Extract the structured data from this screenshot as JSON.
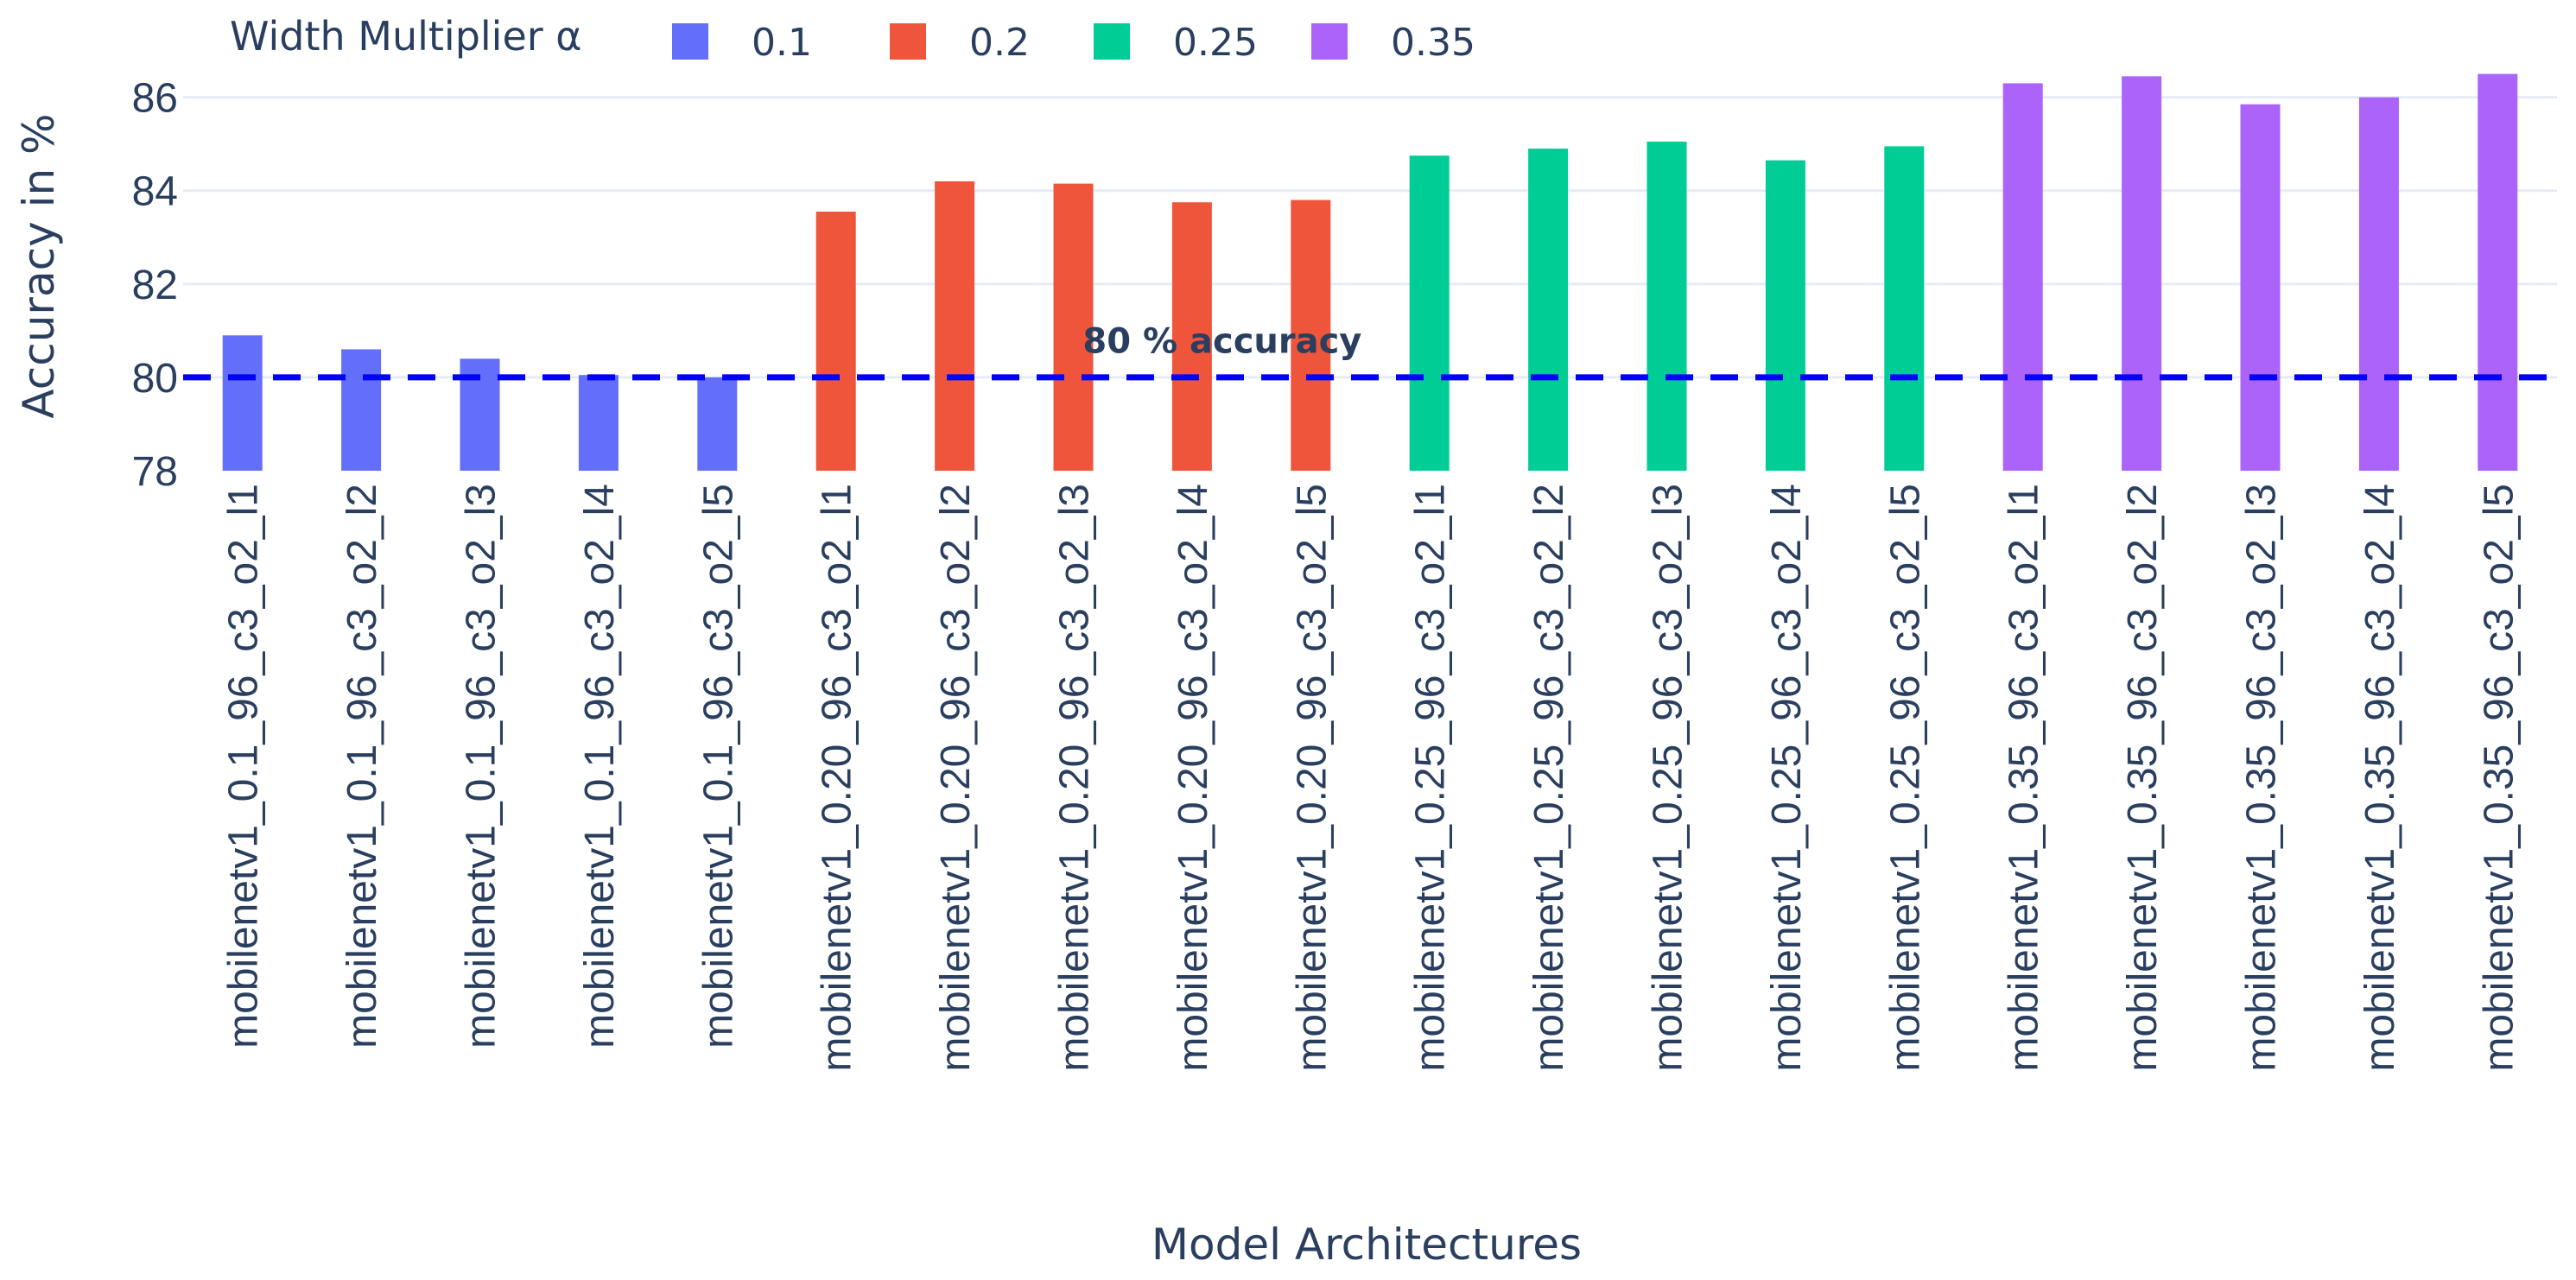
{
  "chart_data": {
    "type": "bar",
    "title": "",
    "xlabel": "Model Architectures",
    "ylabel": "Accuracy in %",
    "ylim": [
      78,
      86.9
    ],
    "yticks": [
      "78",
      "80",
      "82",
      "84",
      "86"
    ],
    "grid": true,
    "legend": {
      "title": "Width Multiplier α",
      "placement": "top-left, horizontal"
    },
    "categories": [
      "mobilenetv1_0.1_96_c3_o2_l1",
      "mobilenetv1_0.1_96_c3_o2_l2",
      "mobilenetv1_0.1_96_c3_o2_l3",
      "mobilenetv1_0.1_96_c3_o2_l4",
      "mobilenetv1_0.1_96_c3_o2_l5",
      "mobilenetv1_0.20_96_c3_o2_l1",
      "mobilenetv1_0.20_96_c3_o2_l2",
      "mobilenetv1_0.20_96_c3_o2_l3",
      "mobilenetv1_0.20_96_c3_o2_l4",
      "mobilenetv1_0.20_96_c3_o2_l5",
      "mobilenetv1_0.25_96_c3_o2_l1",
      "mobilenetv1_0.25_96_c3_o2_l2",
      "mobilenetv1_0.25_96_c3_o2_l3",
      "mobilenetv1_0.25_96_c3_o2_l4",
      "mobilenetv1_0.25_96_c3_o2_l5",
      "mobilenetv1_0.35_96_c3_o2_l1",
      "mobilenetv1_0.35_96_c3_o2_l2",
      "mobilenetv1_0.35_96_c3_o2_l3",
      "mobilenetv1_0.35_96_c3_o2_l4",
      "mobilenetv1_0.35_96_c3_o2_l5"
    ],
    "series": [
      {
        "name": "0.1",
        "color": "#636efa",
        "values": [
          80.9,
          80.6,
          80.4,
          80.05,
          80.0,
          null,
          null,
          null,
          null,
          null,
          null,
          null,
          null,
          null,
          null,
          null,
          null,
          null,
          null,
          null
        ]
      },
      {
        "name": "0.2",
        "color": "#ef553b",
        "values": [
          null,
          null,
          null,
          null,
          null,
          83.55,
          84.2,
          84.15,
          83.75,
          83.8,
          null,
          null,
          null,
          null,
          null,
          null,
          null,
          null,
          null,
          null
        ]
      },
      {
        "name": "0.25",
        "color": "#00cc96",
        "values": [
          null,
          null,
          null,
          null,
          null,
          null,
          null,
          null,
          null,
          null,
          84.75,
          84.9,
          85.05,
          84.65,
          84.95,
          null,
          null,
          null,
          null,
          null
        ]
      },
      {
        "name": "0.35",
        "color": "#ab63fa",
        "values": [
          null,
          null,
          null,
          null,
          null,
          null,
          null,
          null,
          null,
          null,
          null,
          null,
          null,
          null,
          null,
          86.3,
          86.45,
          85.85,
          86.0,
          86.5
        ]
      }
    ],
    "reference_line": {
      "value": 80,
      "color": "#0000ff",
      "style": "dashed"
    },
    "annotations": [
      {
        "text": "80 % accuracy",
        "x_category": "mobilenetv1_0.20_96_c3_o2_l4",
        "y": 80.6
      }
    ]
  }
}
